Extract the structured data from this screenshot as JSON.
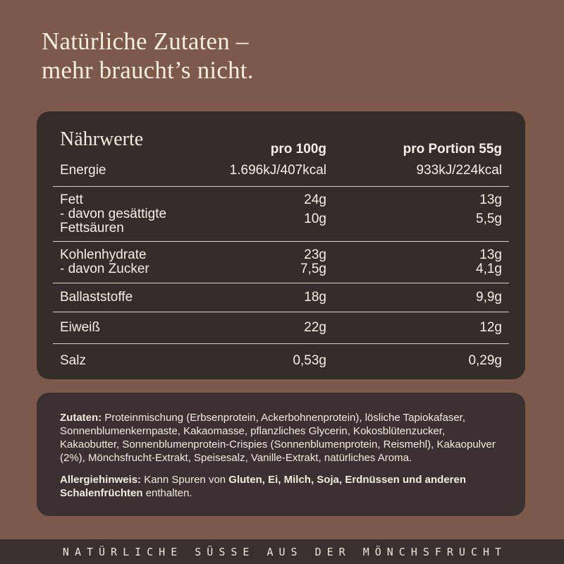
{
  "theme": {
    "page_bg": "#7d594c",
    "nutrition_panel_bg": "#352d2a",
    "ingredients_panel_bg": "#3a3130",
    "footer_bg": "#39312e",
    "cream_text": "#f3edde",
    "divider": "#eee8dc"
  },
  "headline": {
    "line1": "Natürliche Zutaten –",
    "line2": "mehr braucht’s nicht."
  },
  "nutrition": {
    "title": "Nährwerte",
    "columns": [
      "pro 100g",
      "pro Portion 55g"
    ],
    "rows": [
      {
        "label": [
          "Energie"
        ],
        "per100": [
          "1.696kJ/407kcal"
        ],
        "portion": [
          "933kJ/224kcal"
        ],
        "second_value_offset": false
      },
      {
        "label": [
          "Fett",
          "- davon gesättigte",
          "Fettsäuren"
        ],
        "per100": [
          "24g",
          "10g"
        ],
        "portion": [
          "13g",
          "5,5g"
        ],
        "second_value_offset": true
      },
      {
        "label": [
          "Kohlenhydrate",
          "- davon Zucker"
        ],
        "per100": [
          "23g",
          "7,5g"
        ],
        "portion": [
          "13g",
          "4,1g"
        ],
        "second_value_offset": false
      },
      {
        "label": [
          "Ballaststoffe"
        ],
        "per100": [
          "18g"
        ],
        "portion": [
          "9,9g"
        ],
        "second_value_offset": false
      },
      {
        "label": [
          "Eiweiß"
        ],
        "per100": [
          "22g"
        ],
        "portion": [
          "12g"
        ],
        "second_value_offset": false
      },
      {
        "label": [
          "Salz"
        ],
        "per100": [
          "0,53g"
        ],
        "portion": [
          "0,29g"
        ],
        "second_value_offset": false
      }
    ]
  },
  "ingredients": {
    "segments": [
      {
        "text": "Zutaten: ",
        "bold": true
      },
      {
        "text": "Proteinmischung (Erbsenprotein, Ackerbohnenprotein), lösliche Tapiokafaser, Sonnenblumenkernpaste, Kakaomasse, pflanzliches Glycerin, Kokosblütenzucker, Kakaobutter, Sonnenblumenprotein-Crispies (Sonnenblumenprotein, Reismehl), Kakaopulver (2%), Mönchsfrucht-Extrakt, Speisesalz, Vanille-Extrakt, natürliches Aroma.",
        "bold": false
      }
    ]
  },
  "allergy": {
    "segments": [
      {
        "text": "Allergiehinweis: ",
        "bold": true
      },
      {
        "text": "Kann Spuren von ",
        "bold": false
      },
      {
        "text": "Gluten, Ei, Milch, Soja, Erdnüssen und anderen Schalenfrüchten",
        "bold": true
      },
      {
        "text": " enthalten.",
        "bold": false
      }
    ]
  },
  "footer": {
    "tagline": "NATÜRLICHE SÜSSE AUS DER MÖNCHSFRUCHT"
  }
}
